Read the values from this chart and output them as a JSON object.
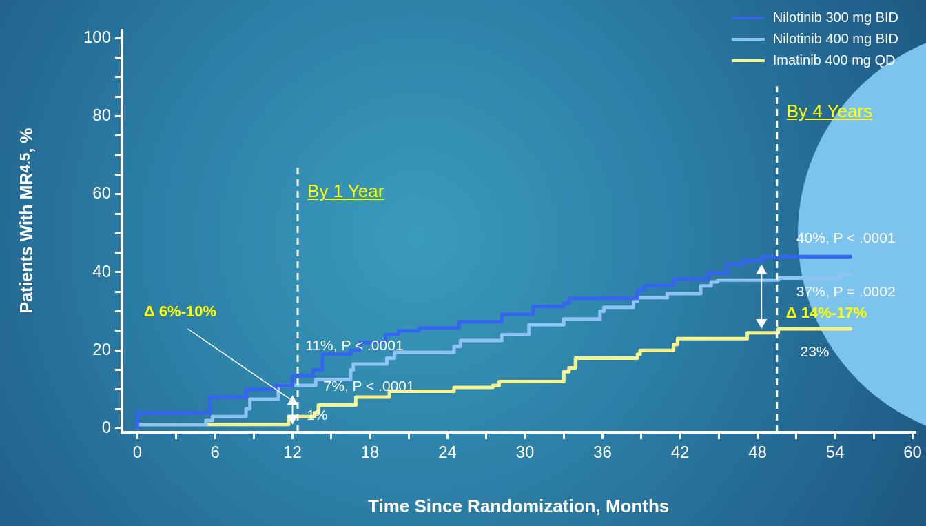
{
  "chart_data": {
    "type": "step",
    "xlabel": "Time Since Randomization, Months",
    "ylabel": "Patients With MR$^{4.5}$, %",
    "xlim": [
      -1.2,
      60.2
    ],
    "ylim": [
      -1,
      102
    ],
    "xticks": [
      0,
      {
        "value": 3,
        "label": null
      },
      6,
      {
        "value": 9,
        "label": null
      },
      12,
      {
        "value": 15,
        "label": null
      },
      18,
      {
        "value": 21,
        "label": null
      },
      24,
      {
        "value": 27,
        "label": null
      },
      30,
      {
        "value": 33,
        "label": null
      },
      36,
      {
        "value": 39,
        "label": null
      },
      42,
      {
        "value": 45,
        "label": null
      },
      48,
      {
        "value": 51,
        "label": null
      },
      54,
      {
        "value": 57,
        "label": null
      },
      60
    ],
    "yticks": [
      0,
      {
        "value": 5,
        "label": null
      },
      {
        "value": 10,
        "label": null
      },
      {
        "value": 15,
        "label": null
      },
      20,
      {
        "value": 25,
        "label": null
      },
      {
        "value": 30,
        "label": null
      },
      {
        "value": 35,
        "label": null
      },
      40,
      {
        "value": 45,
        "label": null
      },
      {
        "value": 50,
        "label": null
      },
      {
        "value": 55,
        "label": null
      },
      60,
      {
        "value": 65,
        "label": null
      },
      {
        "value": 70,
        "label": null
      },
      {
        "value": 75,
        "label": null
      },
      80,
      {
        "value": 85,
        "label": null
      },
      {
        "value": 90,
        "label": null
      },
      {
        "value": 95,
        "label": null
      },
      100
    ],
    "grid": false,
    "legend": "top right",
    "line_style": "solid",
    "marker": "none",
    "series": [
      {
        "name": "Nilotinib 300 mg BID",
        "color": "#3563f2",
        "x": [
          0,
          5.6,
          8.4,
          10.7,
          12,
          13.6,
          14.3,
          16.5,
          17.2,
          19.2,
          20.2,
          21.8,
          24.9,
          28.2,
          30.6,
          33,
          33.4,
          38.7,
          39.2,
          41.5,
          44.1,
          45.6,
          46.9,
          48.4,
          55.2
        ],
        "values": [
          0,
          4,
          8,
          10,
          11,
          13.5,
          15,
          19,
          20,
          22,
          24,
          25,
          25.7,
          27.3,
          29.2,
          31.2,
          32,
          33.3,
          35.4,
          36.6,
          38.2,
          39.8,
          42,
          43,
          44
        ]
      },
      {
        "name": "Nilotinib 400 mg BID",
        "color": "#8fc3f5",
        "x": [
          0,
          5.3,
          5.8,
          8.4,
          8.7,
          10.9,
          13.8,
          16.5,
          16.7,
          19.3,
          19.9,
          24.5,
          25,
          28.2,
          30.3,
          33,
          35.8,
          36.1,
          38.4,
          38.7,
          41,
          43.6,
          44.4,
          44.9,
          49.6,
          54.4,
          55.2
        ],
        "values": [
          0,
          1,
          2,
          3,
          5,
          7.5,
          11,
          12.5,
          15,
          16.5,
          18,
          19.5,
          21,
          22.5,
          24,
          26.5,
          28,
          30,
          31,
          32.5,
          33.5,
          34.5,
          36.5,
          37.5,
          38,
          38.5,
          39.5
        ]
      },
      {
        "name": "Imatinib 400 mg QD",
        "color": "#f6f38c",
        "x": [
          0,
          11.7,
          13.7,
          14,
          16.9,
          19.5,
          24.5,
          27.5,
          28,
          33,
          33.4,
          33.9,
          38.7,
          38.9,
          41.5,
          41.8,
          47.2,
          49.6,
          55.2
        ],
        "values": [
          0,
          1,
          3,
          4,
          6,
          8,
          9.5,
          10.5,
          11,
          12,
          14.5,
          15.5,
          18,
          19,
          20,
          21.5,
          23,
          24.5,
          25.5
        ]
      }
    ],
    "ref_lines": [
      {
        "axis": "x",
        "value": 12.4,
        "label": "By 1 Year",
        "color": "#ffffff",
        "line_style": "dashed"
      },
      {
        "axis": "x",
        "value": 49.5,
        "label": "By 4 Years",
        "color": "#ffffff",
        "line_style": "dashed"
      }
    ],
    "annotations": [
      "Δ 6%-10%",
      "11%, P < .0001",
      "7%, P < .0001",
      "1%",
      "40%, P < .0001",
      "37%, P = .0002",
      "Δ 14%-17%",
      "23%"
    ]
  }
}
